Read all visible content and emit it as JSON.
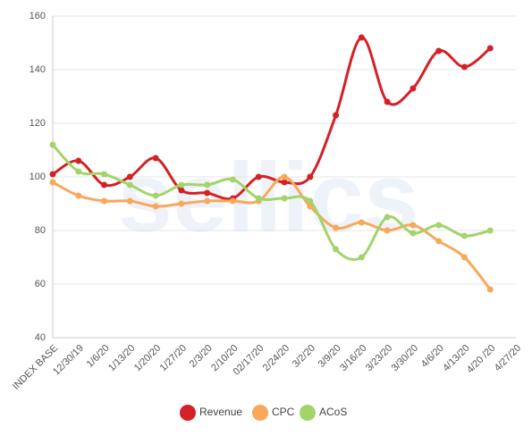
{
  "chart_data": {
    "type": "line",
    "watermark": "sellics",
    "categories": [
      "INDEX BASE",
      "12/30/19",
      "1/6/20",
      "1/13/20",
      "1/20/20",
      "1/27/20",
      "2/3/20",
      "2/10/20",
      "02/17/20",
      "2/24/20",
      "3/2/20",
      "3/9/20",
      "3/16/20",
      "3/23/20",
      "3/30/20",
      "4/6/20",
      "4/13/20",
      "4/20 /20",
      "4/27/20"
    ],
    "series": [
      {
        "name": "Revenue",
        "color": "#d42027",
        "values": [
          101,
          106,
          97,
          100,
          107,
          95,
          94,
          92,
          100,
          98,
          100,
          123,
          152,
          128,
          133,
          147,
          141,
          148,
          null
        ]
      },
      {
        "name": "CPC",
        "color": "#f9a85a",
        "values": [
          98,
          93,
          91,
          91,
          89,
          90,
          91,
          91,
          91,
          100,
          89,
          81,
          83,
          80,
          82,
          76,
          70,
          58,
          null
        ]
      },
      {
        "name": "ACoS",
        "color": "#a3d46a",
        "values": [
          112,
          102,
          101,
          97,
          93,
          97,
          97,
          99,
          92,
          92,
          91,
          73,
          70,
          85,
          79,
          82,
          78,
          80,
          null
        ]
      }
    ],
    "ylim": [
      40,
      160
    ],
    "yticks": [
      40,
      60,
      80,
      100,
      120,
      140,
      160
    ],
    "grid": true,
    "legend": "bottom"
  }
}
